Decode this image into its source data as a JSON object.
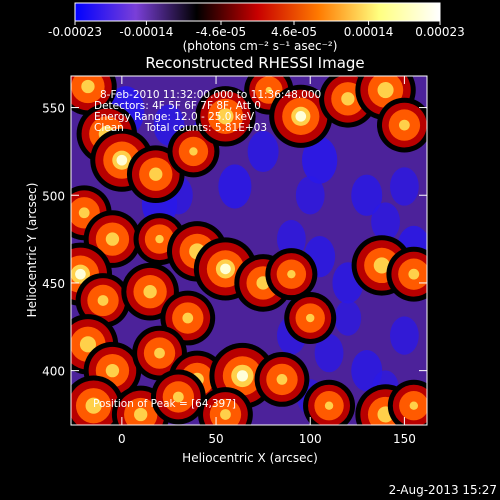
{
  "chart_data": {
    "type": "heatmap",
    "title": "Reconstructed RHESSI Image",
    "xlabel": "Heliocentric X (arcsec)",
    "ylabel": "Heliocentric Y (arcsec)",
    "xlim": [
      -27,
      162
    ],
    "ylim": [
      369,
      568
    ],
    "x_ticks": [
      "0",
      "50",
      "100",
      "150"
    ],
    "y_ticks": [
      "400",
      "450",
      "500",
      "550"
    ],
    "x_tick_values": [
      0,
      50,
      100,
      150
    ],
    "y_tick_values": [
      400,
      450,
      500,
      550
    ],
    "colorbar": {
      "range": [
        -0.00023,
        0.00023
      ],
      "ticks": [
        "-0.00023",
        "-0.00014",
        "-4.6e-05",
        "4.6e-05",
        "0.00014",
        "0.00023"
      ],
      "tick_values": [
        -0.00023,
        -0.00014,
        -4.6e-05,
        4.6e-05,
        0.00014,
        0.00023
      ],
      "unit_label": "(photons cm⁻² s⁻¹ asec⁻²)",
      "colormap": [
        "#0000ff",
        "#7a3fd8",
        "#000000",
        "#c80000",
        "#ff7a00",
        "#ffff80",
        "#ffffff"
      ]
    },
    "annotations": {
      "time": "8-Feb-2010 11:32:00.000 to 11:36:48.000",
      "detectors": "Detectors: 4F 5F 6F 7F 8F, Att 0",
      "energy": "Energy Range: 12.0 - 25.0 keV",
      "clean": "Clean",
      "counts": "Total counts: 5.81E+03",
      "peak": "Position of Peak = [64,397]"
    },
    "peak": [
      64,
      397
    ],
    "hot_spots": [
      {
        "x": -18,
        "y": 562,
        "v": 0.7
      },
      {
        "x": -8,
        "y": 535,
        "v": 0.8
      },
      {
        "x": 0,
        "y": 520,
        "v": 0.9
      },
      {
        "x": 18,
        "y": 512,
        "v": 0.7
      },
      {
        "x": 38,
        "y": 525,
        "v": 0.5
      },
      {
        "x": 55,
        "y": 545,
        "v": 0.8
      },
      {
        "x": 78,
        "y": 560,
        "v": 0.4
      },
      {
        "x": 95,
        "y": 545,
        "v": 0.9
      },
      {
        "x": 120,
        "y": 555,
        "v": 0.7
      },
      {
        "x": 140,
        "y": 560,
        "v": 0.8
      },
      {
        "x": 150,
        "y": 540,
        "v": 0.6
      },
      {
        "x": -20,
        "y": 490,
        "v": 0.6
      },
      {
        "x": -5,
        "y": 475,
        "v": 0.7
      },
      {
        "x": 20,
        "y": 475,
        "v": 0.5
      },
      {
        "x": 40,
        "y": 468,
        "v": 0.8
      },
      {
        "x": 55,
        "y": 458,
        "v": 0.9
      },
      {
        "x": 75,
        "y": 450,
        "v": 0.7
      },
      {
        "x": 90,
        "y": 455,
        "v": 0.5
      },
      {
        "x": -22,
        "y": 455,
        "v": 0.9
      },
      {
        "x": -10,
        "y": 440,
        "v": 0.6
      },
      {
        "x": 15,
        "y": 445,
        "v": 0.7
      },
      {
        "x": 35,
        "y": 430,
        "v": 0.6
      },
      {
        "x": 100,
        "y": 430,
        "v": 0.5
      },
      {
        "x": 138,
        "y": 460,
        "v": 0.8
      },
      {
        "x": 155,
        "y": 455,
        "v": 0.6
      },
      {
        "x": -18,
        "y": 415,
        "v": 0.8
      },
      {
        "x": -5,
        "y": 400,
        "v": 0.7
      },
      {
        "x": 20,
        "y": 410,
        "v": 0.6
      },
      {
        "x": 40,
        "y": 395,
        "v": 0.7
      },
      {
        "x": 64,
        "y": 397,
        "v": 1.0
      },
      {
        "x": 85,
        "y": 395,
        "v": 0.6
      },
      {
        "x": 110,
        "y": 380,
        "v": 0.5
      },
      {
        "x": -15,
        "y": 380,
        "v": 0.8
      },
      {
        "x": 10,
        "y": 375,
        "v": 0.7
      },
      {
        "x": 30,
        "y": 385,
        "v": 0.6
      },
      {
        "x": 55,
        "y": 375,
        "v": 0.6
      },
      {
        "x": 140,
        "y": 375,
        "v": 0.8
      },
      {
        "x": 155,
        "y": 380,
        "v": 0.5
      }
    ],
    "cold_spots": [
      {
        "x": 2,
        "y": 548,
        "v": 0.9
      },
      {
        "x": 25,
        "y": 540,
        "v": 0.6
      },
      {
        "x": 30,
        "y": 500,
        "v": 0.5
      },
      {
        "x": 20,
        "y": 495,
        "v": 0.8
      },
      {
        "x": 60,
        "y": 505,
        "v": 0.7
      },
      {
        "x": 75,
        "y": 525,
        "v": 0.6
      },
      {
        "x": 100,
        "y": 500,
        "v": 0.5
      },
      {
        "x": 105,
        "y": 520,
        "v": 0.8
      },
      {
        "x": 130,
        "y": 500,
        "v": 0.6
      },
      {
        "x": 150,
        "y": 505,
        "v": 0.5
      },
      {
        "x": 140,
        "y": 485,
        "v": 0.5
      },
      {
        "x": 155,
        "y": 470,
        "v": 0.7
      },
      {
        "x": 120,
        "y": 450,
        "v": 0.6
      },
      {
        "x": 105,
        "y": 465,
        "v": 0.6
      },
      {
        "x": 90,
        "y": 475,
        "v": 0.5
      },
      {
        "x": 110,
        "y": 410,
        "v": 0.5
      },
      {
        "x": 130,
        "y": 400,
        "v": 0.6
      },
      {
        "x": 90,
        "y": 420,
        "v": 0.5
      },
      {
        "x": 120,
        "y": 430,
        "v": 0.4
      },
      {
        "x": 150,
        "y": 420,
        "v": 0.5
      },
      {
        "x": 140,
        "y": 390,
        "v": 0.4
      },
      {
        "x": 100,
        "y": 385,
        "v": 0.4
      },
      {
        "x": 45,
        "y": 535,
        "v": 0.5
      }
    ]
  },
  "footer_date": "2-Aug-2013 15:27"
}
